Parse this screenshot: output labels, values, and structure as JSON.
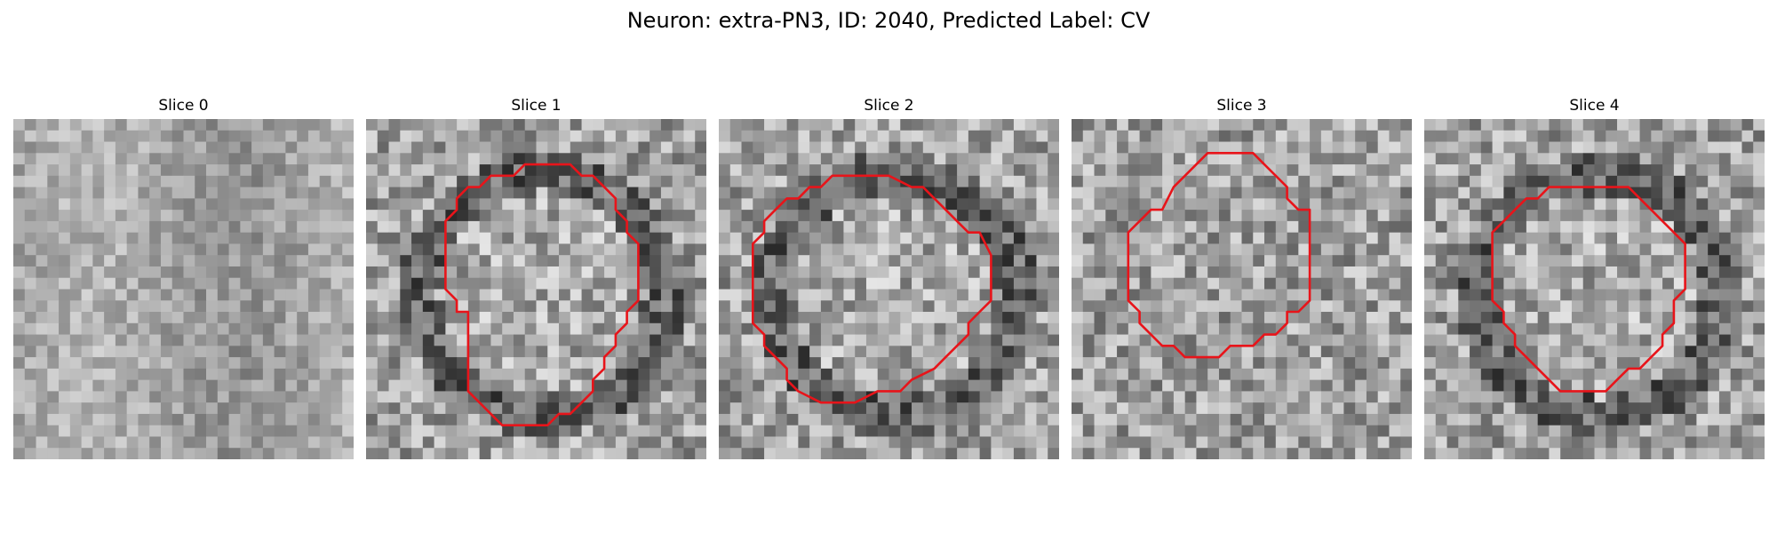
{
  "figure": {
    "title": "Neuron: extra-PN3, ID: 2040, Predicted Label: CV"
  },
  "panels": [
    {
      "title": "Slice 0",
      "has_contour": false,
      "seed": 11,
      "ring": false
    },
    {
      "title": "Slice 1",
      "has_contour": true,
      "seed": 23,
      "ring": true,
      "contour": [
        [
          15,
          4
        ],
        [
          18,
          4
        ],
        [
          19,
          5
        ],
        [
          20,
          5
        ],
        [
          21,
          6
        ],
        [
          22,
          7
        ],
        [
          22,
          8
        ],
        [
          23,
          9
        ],
        [
          23,
          10
        ],
        [
          24,
          11
        ],
        [
          24,
          12
        ],
        [
          24,
          14
        ],
        [
          24,
          16
        ],
        [
          23,
          17
        ],
        [
          23,
          18
        ],
        [
          22,
          19
        ],
        [
          22,
          20
        ],
        [
          21,
          21
        ],
        [
          21,
          22
        ],
        [
          20,
          23
        ],
        [
          20,
          24
        ],
        [
          19,
          25
        ],
        [
          18,
          26
        ],
        [
          17,
          26
        ],
        [
          16,
          27
        ],
        [
          14,
          27
        ],
        [
          12,
          27
        ],
        [
          11,
          26
        ],
        [
          10,
          25
        ],
        [
          9,
          24
        ],
        [
          9,
          23
        ],
        [
          9,
          21
        ],
        [
          9,
          19
        ],
        [
          9,
          17
        ],
        [
          8,
          17
        ],
        [
          8,
          16
        ],
        [
          7,
          15
        ],
        [
          7,
          14
        ],
        [
          7,
          12
        ],
        [
          7,
          10
        ],
        [
          7,
          9
        ],
        [
          8,
          8
        ],
        [
          8,
          7
        ],
        [
          9,
          6
        ],
        [
          10,
          6
        ],
        [
          11,
          5
        ],
        [
          13,
          5
        ],
        [
          14,
          4
        ]
      ]
    },
    {
      "title": "Slice 2",
      "has_contour": true,
      "seed": 37,
      "ring": true,
      "contour": [
        [
          11,
          5
        ],
        [
          13,
          5
        ],
        [
          14,
          5
        ],
        [
          15,
          5
        ],
        [
          17,
          6
        ],
        [
          18,
          6
        ],
        [
          19,
          7
        ],
        [
          20,
          8
        ],
        [
          21,
          9
        ],
        [
          22,
          10
        ],
        [
          23,
          10
        ],
        [
          24,
          12
        ],
        [
          24,
          14
        ],
        [
          24,
          16
        ],
        [
          23,
          17
        ],
        [
          22,
          18
        ],
        [
          22,
          19
        ],
        [
          21,
          20
        ],
        [
          20,
          21
        ],
        [
          19,
          22
        ],
        [
          17,
          23
        ],
        [
          16,
          24
        ],
        [
          15,
          24
        ],
        [
          14,
          24
        ],
        [
          12,
          25
        ],
        [
          11,
          25
        ],
        [
          9,
          25
        ],
        [
          7,
          24
        ],
        [
          6,
          23
        ],
        [
          6,
          22
        ],
        [
          5,
          21
        ],
        [
          4,
          20
        ],
        [
          4,
          19
        ],
        [
          3,
          18
        ],
        [
          3,
          17
        ],
        [
          3,
          15
        ],
        [
          3,
          13
        ],
        [
          3,
          11
        ],
        [
          4,
          10
        ],
        [
          4,
          9
        ],
        [
          5,
          8
        ],
        [
          6,
          7
        ],
        [
          7,
          7
        ],
        [
          8,
          6
        ],
        [
          9,
          6
        ],
        [
          10,
          5
        ]
      ]
    },
    {
      "title": "Slice 3",
      "has_contour": true,
      "seed": 51,
      "ring": false,
      "contour": [
        [
          12,
          3
        ],
        [
          14,
          3
        ],
        [
          15,
          3
        ],
        [
          16,
          3
        ],
        [
          17,
          4
        ],
        [
          18,
          5
        ],
        [
          19,
          6
        ],
        [
          19,
          7
        ],
        [
          20,
          8
        ],
        [
          21,
          8
        ],
        [
          21,
          10
        ],
        [
          21,
          12
        ],
        [
          21,
          14
        ],
        [
          21,
          16
        ],
        [
          20,
          17
        ],
        [
          19,
          17
        ],
        [
          19,
          18
        ],
        [
          18,
          19
        ],
        [
          17,
          19
        ],
        [
          16,
          20
        ],
        [
          14,
          20
        ],
        [
          13,
          21
        ],
        [
          11,
          21
        ],
        [
          10,
          21
        ],
        [
          9,
          20
        ],
        [
          8,
          20
        ],
        [
          7,
          19
        ],
        [
          6,
          18
        ],
        [
          6,
          17
        ],
        [
          5,
          16
        ],
        [
          5,
          15
        ],
        [
          5,
          13
        ],
        [
          5,
          11
        ],
        [
          5,
          10
        ],
        [
          6,
          9
        ],
        [
          7,
          8
        ],
        [
          8,
          8
        ],
        [
          9,
          6
        ],
        [
          10,
          5
        ],
        [
          11,
          4
        ]
      ]
    },
    {
      "title": "Slice 4",
      "has_contour": true,
      "seed": 68,
      "ring": true,
      "contour": [
        [
          11,
          6
        ],
        [
          13,
          6
        ],
        [
          16,
          6
        ],
        [
          18,
          6
        ],
        [
          19,
          7
        ],
        [
          20,
          8
        ],
        [
          21,
          9
        ],
        [
          22,
          10
        ],
        [
          23,
          11
        ],
        [
          23,
          13
        ],
        [
          23,
          15
        ],
        [
          22,
          16
        ],
        [
          22,
          18
        ],
        [
          21,
          19
        ],
        [
          21,
          20
        ],
        [
          20,
          21
        ],
        [
          19,
          22
        ],
        [
          18,
          22
        ],
        [
          17,
          23
        ],
        [
          16,
          24
        ],
        [
          14,
          24
        ],
        [
          12,
          24
        ],
        [
          11,
          23
        ],
        [
          10,
          22
        ],
        [
          9,
          21
        ],
        [
          8,
          20
        ],
        [
          8,
          19
        ],
        [
          7,
          18
        ],
        [
          7,
          17
        ],
        [
          6,
          16
        ],
        [
          6,
          14
        ],
        [
          6,
          12
        ],
        [
          6,
          10
        ],
        [
          7,
          9
        ],
        [
          8,
          8
        ],
        [
          9,
          7
        ],
        [
          10,
          7
        ]
      ]
    }
  ]
}
